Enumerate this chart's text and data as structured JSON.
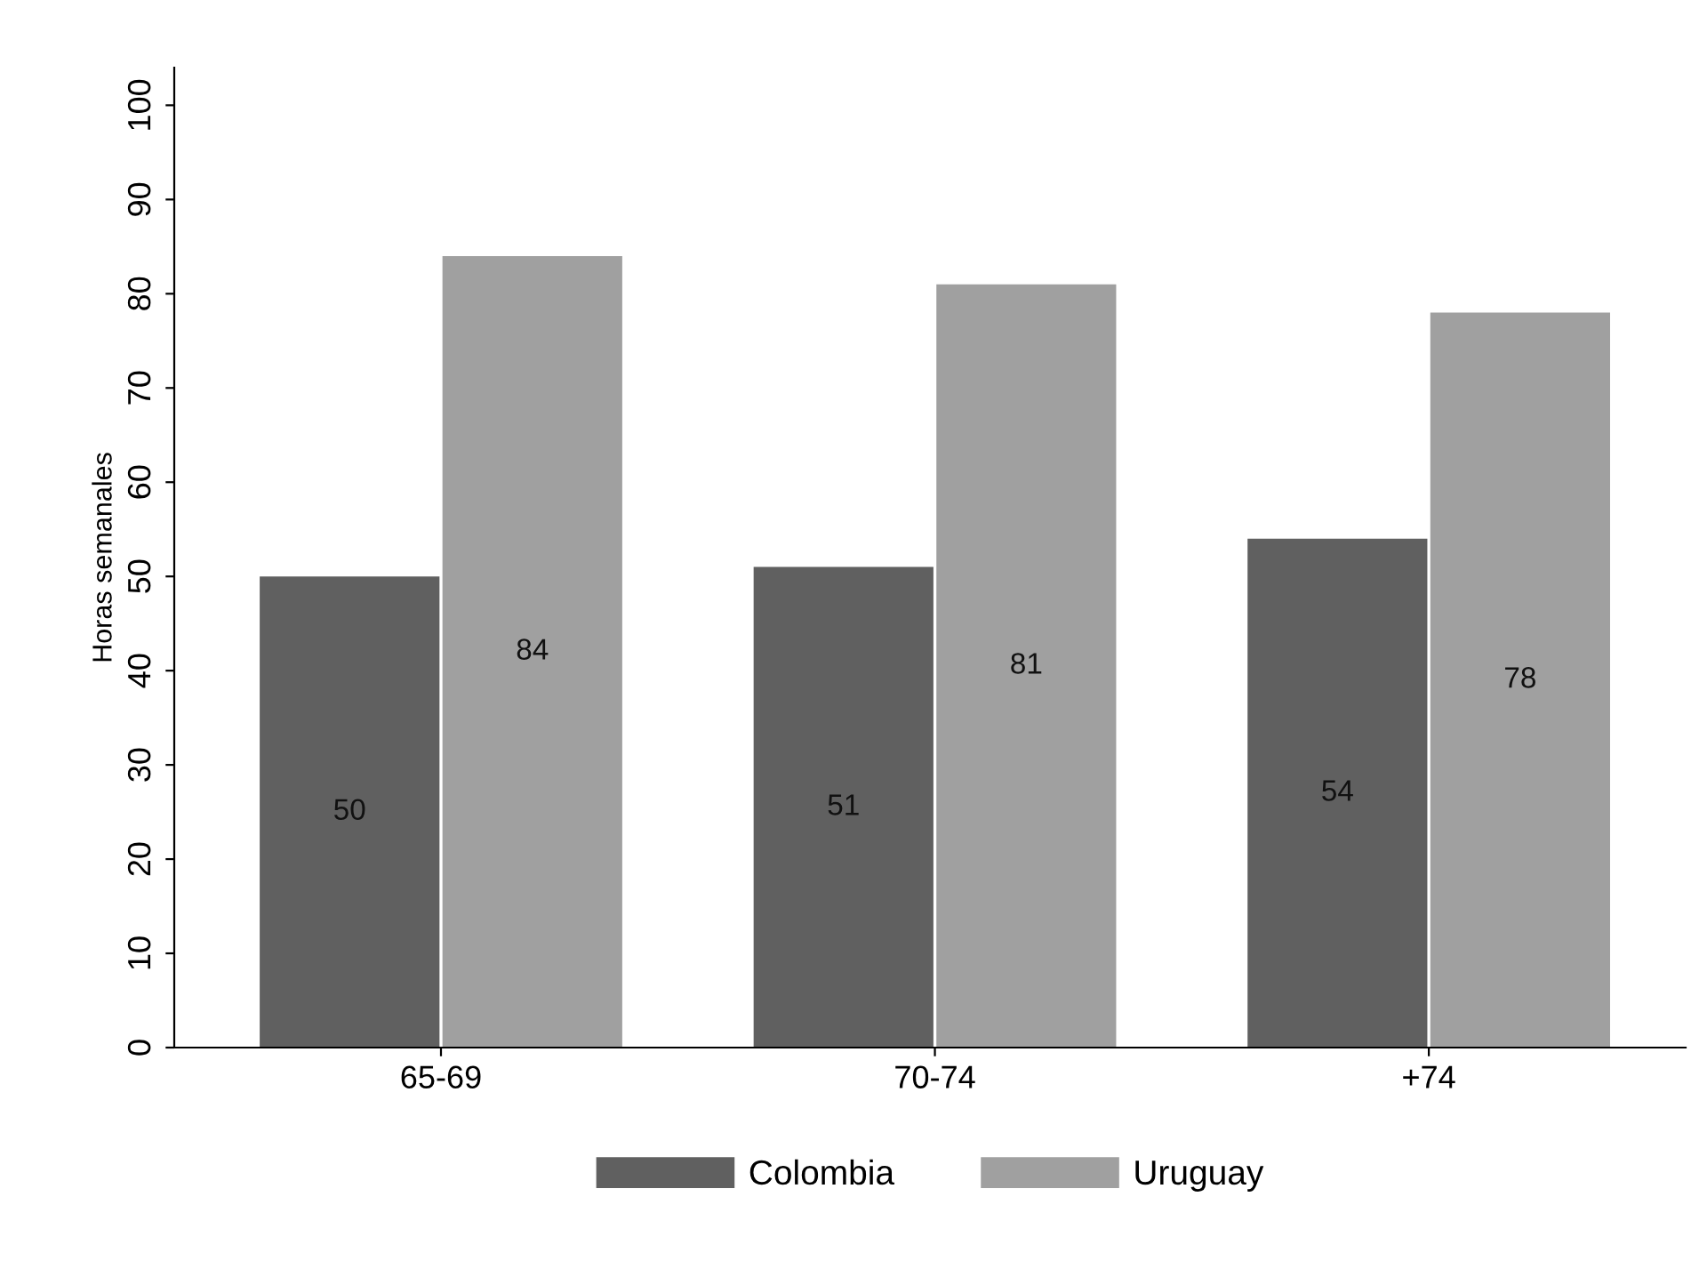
{
  "chart_data": {
    "type": "bar",
    "ylabel": "Horas semanales",
    "categories": [
      "65-69",
      "70-74",
      "+74"
    ],
    "series": [
      {
        "name": "Colombia",
        "color": "#606060",
        "values": [
          50,
          51,
          54
        ]
      },
      {
        "name": "Uruguay",
        "color": "#a0a0a0",
        "values": [
          84,
          81,
          78
        ]
      }
    ],
    "ylim": [
      0,
      104
    ],
    "yticks": [
      0,
      10,
      20,
      30,
      40,
      50,
      60,
      70,
      80,
      90,
      100
    ],
    "data_labels": true,
    "grid": false,
    "legend": "bottom"
  }
}
